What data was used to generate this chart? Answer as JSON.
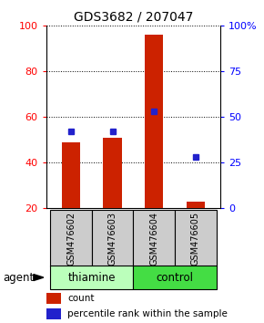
{
  "title": "GDS3682 / 207047",
  "samples": [
    "GSM476602",
    "GSM476603",
    "GSM476604",
    "GSM476605"
  ],
  "group_spans": [
    {
      "name": "thiamine",
      "start": 0,
      "end": 2,
      "color": "#bbffbb"
    },
    {
      "name": "control",
      "start": 2,
      "end": 4,
      "color": "#44dd44"
    }
  ],
  "count_values": [
    49,
    51,
    96,
    23
  ],
  "percentile_values": [
    42,
    42,
    53,
    28
  ],
  "left_ylim": [
    20,
    100
  ],
  "left_yticks": [
    20,
    40,
    60,
    80,
    100
  ],
  "right_yticks_vals": [
    0,
    25,
    50,
    75,
    100
  ],
  "right_yticks_labels": [
    "0",
    "25",
    "50",
    "75",
    "100%"
  ],
  "bar_color": "#cc2200",
  "percentile_color": "#2222cc",
  "sample_label_bg": "#cccccc",
  "agent_label": "agent",
  "legend_count": "count",
  "legend_pct": "percentile rank within the sample",
  "bg_color": "#ffffff"
}
